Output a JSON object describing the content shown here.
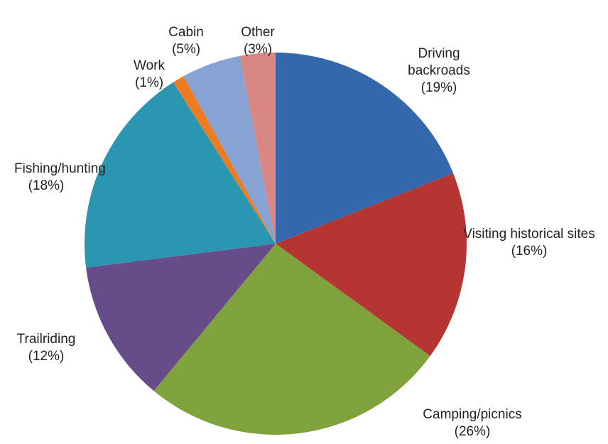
{
  "chart_data": {
    "type": "pie",
    "categories": [
      "Driving backroads",
      "Visiting historical sites",
      "Camping/picnics",
      "Trailriding",
      "Fishing/hunting",
      "Work",
      "Cabin",
      "Other"
    ],
    "values": [
      19,
      16,
      26,
      12,
      18,
      1,
      5,
      3
    ],
    "value_labels": [
      "(19%)",
      "(16%)",
      "(26%)",
      "(12%)",
      "(18%)",
      "(1%)",
      "(5%)",
      "(3%)"
    ],
    "colors": [
      "#3567ad",
      "#b53532",
      "#80a23c",
      "#674c8a",
      "#2b96b0",
      "#ec7c1f",
      "#86a3d3",
      "#d98785"
    ]
  }
}
